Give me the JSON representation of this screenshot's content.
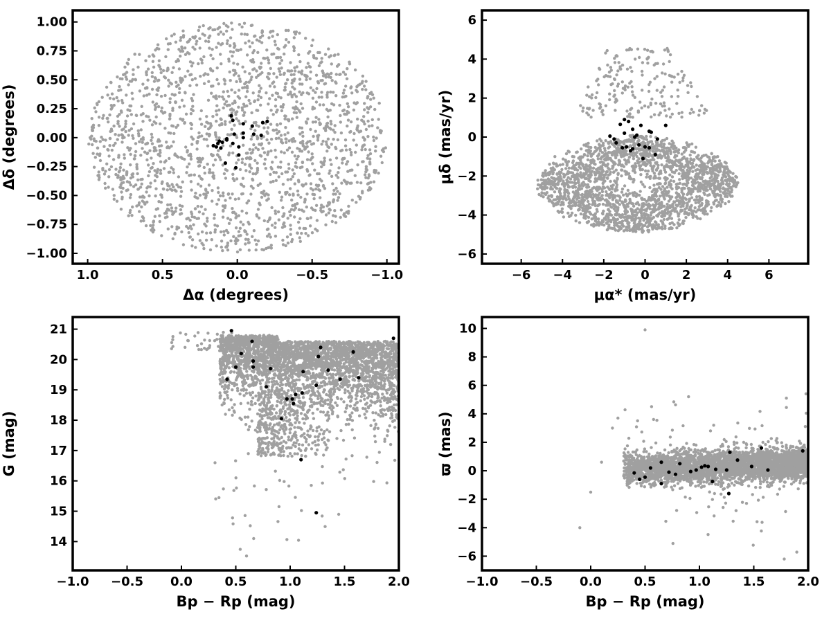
{
  "chart_data": [
    {
      "type": "scatter",
      "xlabel": "Δα (degrees)",
      "ylabel": "Δδ (degrees)",
      "xlim": [
        1.1,
        -1.08
      ],
      "ylim": [
        -1.09,
        1.1
      ],
      "x_ticks": [
        1.0,
        0.5,
        0.0,
        -0.5,
        -1.0
      ],
      "x_tick_labels": [
        "1.0",
        "0.5",
        "0.0",
        "−0.5",
        "−1.0"
      ],
      "y_ticks": [
        1.0,
        0.75,
        0.5,
        0.25,
        0.0,
        -0.25,
        -0.5,
        -0.75,
        -1.0
      ],
      "y_tick_labels": [
        "1.00",
        "0.75",
        "0.50",
        "0.25",
        "0.00",
        "−0.25",
        "−0.50",
        "−0.75",
        "−1.00"
      ],
      "series": [
        {
          "color": "#a0a0a0",
          "distribution": "uniform disk, radius ≈ 1.0 degree, centered at (0, 0)"
        },
        {
          "color": "#000000",
          "points": [
            [
              0.04,
              0.19
            ],
            [
              0.03,
              0.15
            ],
            [
              -0.04,
              0.12
            ],
            [
              -0.1,
              0.1
            ],
            [
              -0.17,
              0.13
            ],
            [
              -0.2,
              0.14
            ],
            [
              -0.04,
              0.04
            ],
            [
              0.02,
              0.03
            ],
            [
              -0.11,
              0.03
            ],
            [
              -0.16,
              0.02
            ],
            [
              -0.04,
              0.0
            ],
            [
              0.07,
              -0.01
            ],
            [
              0.12,
              -0.03
            ],
            [
              0.13,
              -0.05
            ],
            [
              0.14,
              -0.08
            ],
            [
              0.11,
              -0.09
            ],
            [
              0.1,
              -0.04
            ],
            [
              0.16,
              -0.07
            ],
            [
              -0.01,
              -0.08
            ],
            [
              0.03,
              -0.05
            ],
            [
              0.07,
              -0.02
            ],
            [
              0.08,
              -0.22
            ],
            [
              0.01,
              -0.26
            ],
            [
              -0.01,
              -0.15
            ]
          ]
        }
      ]
    },
    {
      "type": "scatter",
      "xlabel": "μα* (mas/yr)",
      "ylabel": "μδ (mas/yr)",
      "xlim": [
        -7.9,
        7.9
      ],
      "ylim": [
        -6.5,
        6.5
      ],
      "x_ticks": [
        -6,
        -4,
        -2,
        0,
        2,
        4,
        6
      ],
      "x_tick_labels": [
        "−6",
        "−4",
        "−2",
        "0",
        "2",
        "4",
        "6"
      ],
      "y_ticks": [
        6,
        4,
        2,
        0,
        -2,
        -4,
        -6
      ],
      "y_tick_labels": [
        "6",
        "4",
        "2",
        "0",
        "−2",
        "−4",
        "−6"
      ],
      "series": [
        {
          "color": "#a0a0a0",
          "distribution": "broad cloud centered near (−0.5, −2.5), dense band μδ −5 to 0, sparse halo up to μδ ≈ 4.6"
        },
        {
          "color": "#000000",
          "points": [
            [
              -1.7,
              0.05
            ],
            [
              -1.5,
              -0.1
            ],
            [
              -1.2,
              0.65
            ],
            [
              -1.0,
              0.9
            ],
            [
              -0.8,
              0.8
            ],
            [
              -0.6,
              0.4
            ],
            [
              -0.4,
              0.1
            ],
            [
              -0.2,
              0.6
            ],
            [
              0.2,
              0.3
            ],
            [
              1.0,
              0.6
            ],
            [
              -1.1,
              -0.55
            ],
            [
              -0.9,
              -0.5
            ],
            [
              -0.6,
              -0.6
            ],
            [
              -0.3,
              -0.4
            ],
            [
              0.0,
              -0.5
            ],
            [
              0.2,
              -0.55
            ],
            [
              0.6,
              -0.1
            ],
            [
              0.5,
              -0.9
            ],
            [
              -0.1,
              -1.1
            ],
            [
              -1.4,
              -0.3
            ],
            [
              -0.5,
              0.0
            ],
            [
              0.3,
              0.25
            ],
            [
              -0.7,
              -0.7
            ],
            [
              -1.0,
              0.2
            ]
          ]
        }
      ]
    },
    {
      "type": "scatter",
      "xlabel": "Bp − Rp (mag)",
      "ylabel": "G (mag)",
      "xlim": [
        -1.0,
        2.0
      ],
      "ylim": [
        13.05,
        21.4
      ],
      "x_ticks": [
        -1.0,
        -0.5,
        0.0,
        0.5,
        1.0,
        1.5,
        2.0
      ],
      "x_tick_labels": [
        "−1.0",
        "−0.5",
        "0.0",
        "0.5",
        "1.0",
        "1.5",
        "2.0"
      ],
      "y_ticks": [
        21,
        20,
        19,
        18,
        17,
        16,
        15,
        14
      ],
      "y_tick_labels": [
        "21",
        "20",
        "19",
        "18",
        "17",
        "16",
        "15",
        "14"
      ],
      "series": [
        {
          "color": "#a0a0a0",
          "distribution": "color–magnitude diagram, dense for G 18–21 and Bp−Rp 0.4–2.0, sparse tail toward brighter magnitudes"
        },
        {
          "color": "#000000",
          "points": [
            [
              0.46,
              20.95
            ],
            [
              0.65,
              20.6
            ],
            [
              0.55,
              20.2
            ],
            [
              0.66,
              19.95
            ],
            [
              0.5,
              19.75
            ],
            [
              0.66,
              19.75
            ],
            [
              0.82,
              19.7
            ],
            [
              0.42,
              19.35
            ],
            [
              0.78,
              19.1
            ],
            [
              1.12,
              19.6
            ],
            [
              1.26,
              20.1
            ],
            [
              1.28,
              20.4
            ],
            [
              1.35,
              19.65
            ],
            [
              1.46,
              19.35
            ],
            [
              1.58,
              20.25
            ],
            [
              1.63,
              19.4
            ],
            [
              1.95,
              20.7
            ],
            [
              0.97,
              18.7
            ],
            [
              1.02,
              18.7
            ],
            [
              1.05,
              18.85
            ],
            [
              1.11,
              18.9
            ],
            [
              1.03,
              18.55
            ],
            [
              0.92,
              18.05
            ],
            [
              1.1,
              16.7
            ],
            [
              1.24,
              14.95
            ],
            [
              1.24,
              19.15
            ]
          ]
        }
      ]
    },
    {
      "type": "scatter",
      "xlabel": "Bp − Rp (mag)",
      "ylabel": "ϖ (mas)",
      "xlim": [
        -1.0,
        2.0
      ],
      "ylim": [
        -7.0,
        10.8
      ],
      "x_ticks": [
        -1.0,
        -0.5,
        0.0,
        0.5,
        1.0,
        1.5,
        2.0
      ],
      "x_tick_labels": [
        "−1.0",
        "−0.5",
        "0.0",
        "0.5",
        "1.0",
        "1.5",
        "2.0"
      ],
      "y_ticks": [
        10,
        8,
        6,
        4,
        2,
        0,
        -2,
        -4,
        -6
      ],
      "y_tick_labels": [
        "10",
        "8",
        "6",
        "4",
        "2",
        "0",
        "−2",
        "−4",
        "−6"
      ],
      "series": [
        {
          "color": "#a0a0a0",
          "distribution": "band around ϖ ≈ 0 for Bp−Rp 0.3–2.0, scatter from about −6 to 5, a few outliers"
        },
        {
          "color": "#000000",
          "points": [
            [
              0.4,
              -0.15
            ],
            [
              0.45,
              -0.6
            ],
            [
              0.5,
              -0.45
            ],
            [
              0.55,
              0.2
            ],
            [
              0.65,
              0.6
            ],
            [
              0.65,
              -0.9
            ],
            [
              0.78,
              -0.25
            ],
            [
              0.82,
              0.5
            ],
            [
              0.92,
              -0.05
            ],
            [
              0.97,
              0.05
            ],
            [
              1.02,
              0.25
            ],
            [
              1.05,
              0.35
            ],
            [
              1.08,
              0.3
            ],
            [
              1.12,
              -0.75
            ],
            [
              1.25,
              0.05
            ],
            [
              1.27,
              -1.6
            ],
            [
              1.28,
              1.3
            ],
            [
              1.35,
              0.75
            ],
            [
              1.48,
              0.3
            ],
            [
              1.57,
              1.6
            ],
            [
              1.63,
              0.05
            ],
            [
              1.95,
              1.4
            ],
            [
              1.15,
              0.1
            ],
            [
              0.72,
              -0.1
            ]
          ]
        }
      ]
    }
  ]
}
